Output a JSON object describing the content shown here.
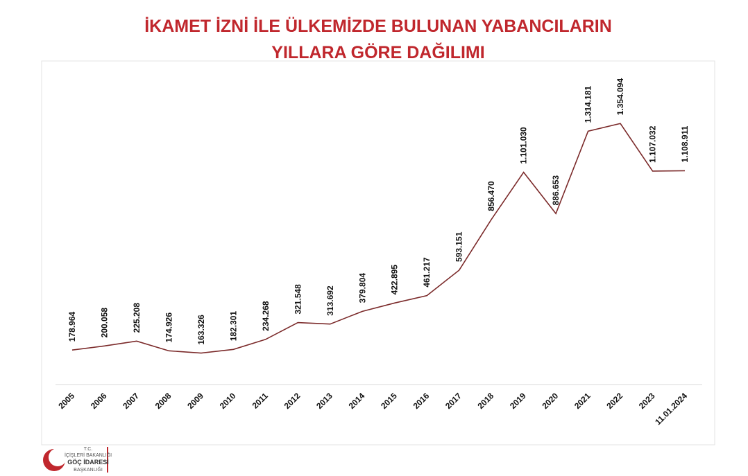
{
  "chart_data": {
    "type": "line",
    "title": [
      "İKAMET İZNİ İLE ÜLKEMİZDE BULUNAN YABANCILARIN",
      "YILLARA GÖRE DAĞILIMI"
    ],
    "categories": [
      "2005",
      "2006",
      "2007",
      "2008",
      "2009",
      "2010",
      "2011",
      "2012",
      "2013",
      "2014",
      "2015",
      "2016",
      "2017",
      "2018",
      "2019",
      "2020",
      "2021",
      "2022",
      "2023",
      "11.01.2024"
    ],
    "series": [
      {
        "color": "#7b2a2a",
        "values": [
          178964,
          200058,
          225208,
          174926,
          163326,
          182301,
          234268,
          321548,
          313692,
          379804,
          422895,
          461217,
          593151,
          856470,
          1101030,
          886653,
          1314181,
          1354094,
          1107032,
          1108911
        ],
        "value_labels": [
          "178.964",
          "200.058",
          "225.208",
          "174.926",
          "163.326",
          "182.301",
          "234.268",
          "321.548",
          "313.692",
          "379.804",
          "422.895",
          "461.217",
          "593.151",
          "856.470",
          "1.101.030",
          "886.653",
          "1.314.181",
          "1.354.094",
          "1.107.032",
          "1.108.911"
        ]
      }
    ],
    "ylim": [
      0,
      1700000
    ]
  },
  "logo": {
    "lines": [
      "T.C.",
      "İÇİŞLERİ BAKANLIĞI",
      "GÖÇ İDARESİ",
      "BAŞKANLIĞI"
    ]
  }
}
